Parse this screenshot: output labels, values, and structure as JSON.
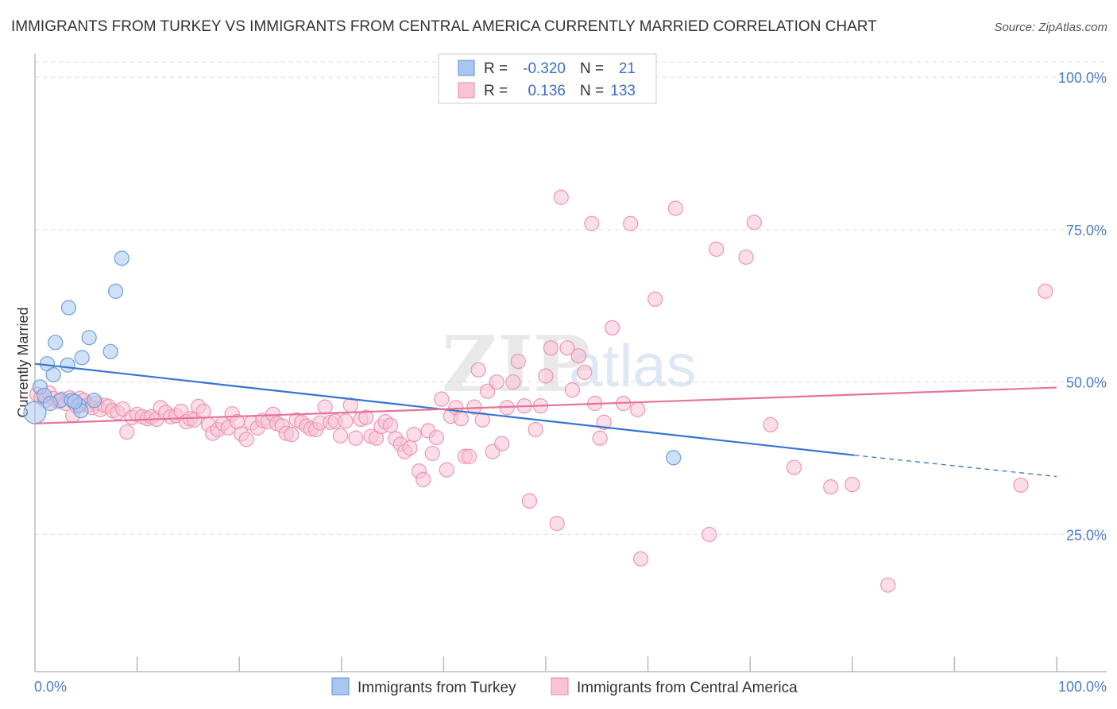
{
  "title": "IMMIGRANTS FROM TURKEY VS IMMIGRANTS FROM CENTRAL AMERICA CURRENTLY MARRIED CORRELATION CHART",
  "source": "Source: ZipAtlas.com",
  "watermark": {
    "zip": "ZIP",
    "atlas": "atlas"
  },
  "legend": {
    "r_label": "R =",
    "n_label": "N =",
    "rows": [
      {
        "r": "-0.320",
        "n": "21",
        "color": "#a9c6ee",
        "stroke": "#6f9fdc"
      },
      {
        "r": "0.136",
        "n": "133",
        "color": "#f8c3d3",
        "stroke": "#ee95b1"
      }
    ]
  },
  "chart_data": {
    "type": "scatter",
    "title": "IMMIGRANTS FROM TURKEY VS IMMIGRANTS FROM CENTRAL AMERICA CURRENTLY MARRIED CORRELATION CHART",
    "xlabel": "",
    "ylabel": "Currently Married",
    "xlim": [
      0,
      100
    ],
    "ylim": [
      2.5,
      102.5
    ],
    "y_ticks": [
      {
        "value": 100,
        "label": "100.0%"
      },
      {
        "value": 75,
        "label": "75.0%"
      },
      {
        "value": 50,
        "label": "50.0%"
      },
      {
        "value": 25,
        "label": "25.0%"
      }
    ],
    "x_tick_labels": {
      "min": "0.0%",
      "max": "100.0%"
    },
    "x_minor_ticks": [
      10,
      20,
      30,
      40,
      50,
      60,
      70,
      80,
      90,
      100
    ],
    "series": [
      {
        "name": "Immigrants from Turkey",
        "color": "#a9c6ee",
        "stroke": "#6f9fdc",
        "line_color": "#3575d3",
        "trend": {
          "x0": 0,
          "y0": 53.0,
          "x1": 80.2,
          "y1": 38.0,
          "x_dash_end": 100,
          "y_dash_end": 34.5
        },
        "points": [
          [
            0.0,
            45.0,
            14
          ],
          [
            0.5,
            49.2,
            9
          ],
          [
            1.2,
            53.0,
            9
          ],
          [
            1.8,
            51.2,
            9
          ],
          [
            2.0,
            56.5,
            9
          ],
          [
            2.5,
            47.0,
            9
          ],
          [
            3.2,
            52.8,
            9
          ],
          [
            3.3,
            62.2,
            9
          ],
          [
            3.6,
            47.0,
            9
          ],
          [
            4.3,
            46.2,
            9
          ],
          [
            4.5,
            45.3,
            9
          ],
          [
            4.6,
            54.0,
            9
          ],
          [
            5.3,
            57.3,
            9
          ],
          [
            5.8,
            47.0,
            9
          ],
          [
            7.4,
            55.0,
            9
          ],
          [
            7.9,
            64.9,
            9
          ],
          [
            8.5,
            70.3,
            9
          ],
          [
            62.5,
            37.6,
            9
          ],
          [
            0.9,
            47.8,
            9
          ],
          [
            1.5,
            46.5,
            9
          ],
          [
            3.9,
            46.8,
            9
          ]
        ]
      },
      {
        "name": "Immigrants from Central America",
        "color": "#f8c3d3",
        "stroke": "#ee95b1",
        "line_color": "#e5739a",
        "trend": {
          "x0": 0,
          "y0": 43.2,
          "x1": 100,
          "y1": 49.1
        },
        "points": [
          [
            0.2,
            48.0,
            9
          ],
          [
            0.6,
            47.5,
            9
          ],
          [
            1.0,
            47.0,
            9
          ],
          [
            1.4,
            48.2,
            9
          ],
          [
            1.8,
            47.3,
            9
          ],
          [
            2.3,
            46.8,
            9
          ],
          [
            2.7,
            47.2,
            9
          ],
          [
            3.0,
            46.5,
            9
          ],
          [
            3.4,
            47.4,
            9
          ],
          [
            3.7,
            44.5,
            9
          ],
          [
            4.1,
            46.0,
            9
          ],
          [
            4.4,
            47.3,
            9
          ],
          [
            4.8,
            47.0,
            9
          ],
          [
            5.2,
            46.2,
            9
          ],
          [
            5.6,
            45.8,
            9
          ],
          [
            6.0,
            46.5,
            9
          ],
          [
            6.4,
            45.5,
            9
          ],
          [
            6.8,
            46.2,
            9
          ],
          [
            7.2,
            46.0,
            9
          ],
          [
            7.6,
            45.3,
            9
          ],
          [
            8.1,
            45.0,
            9
          ],
          [
            8.6,
            45.6,
            9
          ],
          [
            9.0,
            41.8,
            9
          ],
          [
            9.5,
            44.2,
            9
          ],
          [
            10.0,
            44.7,
            9
          ],
          [
            10.5,
            44.3,
            9
          ],
          [
            11.0,
            44.0,
            9
          ],
          [
            11.4,
            44.3,
            9
          ],
          [
            11.9,
            43.9,
            9
          ],
          [
            12.3,
            45.8,
            9
          ],
          [
            12.8,
            45.0,
            9
          ],
          [
            13.3,
            44.3,
            9
          ],
          [
            13.8,
            44.5,
            9
          ],
          [
            14.3,
            45.2,
            9
          ],
          [
            14.8,
            43.5,
            9
          ],
          [
            15.2,
            44.0,
            9
          ],
          [
            15.6,
            43.8,
            9
          ],
          [
            16.0,
            46.0,
            9
          ],
          [
            16.5,
            45.2,
            9
          ],
          [
            17.0,
            43.0,
            9
          ],
          [
            17.4,
            41.6,
            9
          ],
          [
            17.9,
            42.2,
            9
          ],
          [
            18.4,
            43.2,
            9
          ],
          [
            18.9,
            42.5,
            9
          ],
          [
            19.3,
            44.8,
            9
          ],
          [
            19.8,
            43.5,
            9
          ],
          [
            20.2,
            41.5,
            9
          ],
          [
            20.7,
            40.6,
            9
          ],
          [
            21.2,
            43.3,
            9
          ],
          [
            21.8,
            42.5,
            9
          ],
          [
            22.3,
            43.7,
            9
          ],
          [
            22.8,
            43.5,
            9
          ],
          [
            23.3,
            44.7,
            9
          ],
          [
            23.7,
            43.2,
            9
          ],
          [
            24.2,
            42.8,
            9
          ],
          [
            24.6,
            41.6,
            9
          ],
          [
            25.1,
            41.4,
            9
          ],
          [
            25.6,
            43.8,
            9
          ],
          [
            26.1,
            43.4,
            9
          ],
          [
            26.6,
            42.8,
            9
          ],
          [
            27.0,
            42.3,
            9
          ],
          [
            27.5,
            42.2,
            9
          ],
          [
            27.9,
            43.3,
            9
          ],
          [
            28.4,
            45.9,
            9
          ],
          [
            28.9,
            43.4,
            9
          ],
          [
            29.4,
            43.6,
            9
          ],
          [
            29.9,
            41.2,
            9
          ],
          [
            30.4,
            43.6,
            9
          ],
          [
            30.9,
            46.2,
            9
          ],
          [
            31.4,
            40.8,
            9
          ],
          [
            31.9,
            43.9,
            9
          ],
          [
            32.4,
            44.2,
            9
          ],
          [
            32.9,
            41.1,
            9
          ],
          [
            33.4,
            40.8,
            9
          ],
          [
            33.9,
            42.7,
            9
          ],
          [
            34.3,
            43.5,
            9
          ],
          [
            34.8,
            42.9,
            9
          ],
          [
            35.3,
            40.7,
            9
          ],
          [
            35.8,
            39.8,
            9
          ],
          [
            36.2,
            38.6,
            9
          ],
          [
            36.7,
            39.2,
            9
          ],
          [
            37.1,
            41.4,
            9
          ],
          [
            37.6,
            35.4,
            9
          ],
          [
            38.0,
            34.0,
            9
          ],
          [
            38.5,
            42.0,
            9
          ],
          [
            38.9,
            38.3,
            9
          ],
          [
            39.3,
            40.9,
            9
          ],
          [
            39.8,
            47.2,
            9
          ],
          [
            40.3,
            35.6,
            9
          ],
          [
            40.7,
            44.4,
            9
          ],
          [
            41.2,
            45.8,
            9
          ],
          [
            41.7,
            44.0,
            9
          ],
          [
            42.1,
            37.8,
            9
          ],
          [
            42.5,
            37.8,
            9
          ],
          [
            43.0,
            45.9,
            9
          ],
          [
            43.4,
            52.0,
            9
          ],
          [
            43.8,
            43.8,
            9
          ],
          [
            44.3,
            48.5,
            9
          ],
          [
            44.8,
            38.6,
            9
          ],
          [
            45.2,
            50.0,
            9
          ],
          [
            45.7,
            39.9,
            9
          ],
          [
            46.2,
            45.8,
            9
          ],
          [
            46.8,
            50.0,
            9
          ],
          [
            47.3,
            53.4,
            9
          ],
          [
            47.9,
            46.1,
            9
          ],
          [
            48.4,
            30.5,
            9
          ],
          [
            49.0,
            42.2,
            9
          ],
          [
            49.5,
            46.1,
            9
          ],
          [
            50.0,
            51.0,
            9
          ],
          [
            50.5,
            55.6,
            9
          ],
          [
            51.1,
            26.8,
            9
          ],
          [
            51.5,
            80.3,
            9
          ],
          [
            52.1,
            55.6,
            9
          ],
          [
            52.6,
            48.7,
            9
          ],
          [
            53.2,
            54.3,
            9
          ],
          [
            53.8,
            51.6,
            9
          ],
          [
            54.5,
            76.0,
            9
          ],
          [
            54.8,
            46.5,
            9
          ],
          [
            55.3,
            40.8,
            9
          ],
          [
            55.7,
            43.4,
            9
          ],
          [
            56.5,
            58.9,
            9
          ],
          [
            57.6,
            46.5,
            9
          ],
          [
            58.3,
            76.0,
            9
          ],
          [
            59.0,
            45.5,
            9
          ],
          [
            59.3,
            21.0,
            9
          ],
          [
            60.7,
            63.6,
            9
          ],
          [
            62.7,
            78.5,
            9
          ],
          [
            66.0,
            25.0,
            9
          ],
          [
            66.7,
            71.8,
            9
          ],
          [
            69.6,
            70.5,
            9
          ],
          [
            70.4,
            76.2,
            9
          ],
          [
            72.0,
            43.0,
            9
          ],
          [
            74.3,
            36.0,
            9
          ],
          [
            77.9,
            32.8,
            9
          ],
          [
            80.0,
            33.2,
            9
          ],
          [
            83.5,
            16.7,
            9
          ],
          [
            96.5,
            33.1,
            9
          ],
          [
            98.9,
            64.9,
            9
          ]
        ]
      }
    ]
  },
  "bottom_legend": [
    {
      "label": "Immigrants from Turkey"
    },
    {
      "label": "Immigrants from Central America"
    }
  ]
}
